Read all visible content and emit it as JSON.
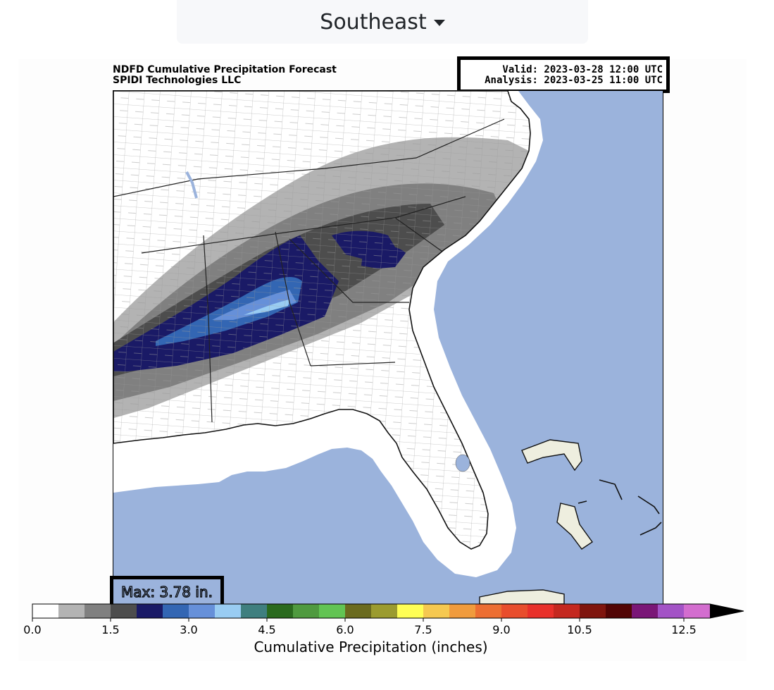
{
  "region_selector": {
    "selected": "Southeast"
  },
  "map": {
    "title_line1": "NDFD Cumulative Precipitation Forecast",
    "title_line2": "SPIDI Technologies LLC",
    "valid": "Valid: 2023-03-28 12:00 UTC",
    "analysis": "Analysis: 2023-03-25 11:00 UTC",
    "max_label": "Max: 3.78 in.",
    "colors": {
      "ocean": "#9bb3dc",
      "land": "#ffffff",
      "bahamas": "#eeeedf"
    }
  },
  "colorbar": {
    "label": "Cumulative Precipitation (inches)",
    "ticks": [
      "0.0",
      "1.5",
      "3.0",
      "4.5",
      "6.0",
      "7.5",
      "9.0",
      "10.5",
      "12.5"
    ],
    "tick_values": [
      0,
      1.5,
      3.0,
      4.5,
      6.0,
      7.5,
      9.0,
      10.5,
      12.5
    ],
    "bin_width": 0.5,
    "extend": "max",
    "colors": [
      "#ffffff",
      "#b3b3b3",
      "#808080",
      "#4d4d4d",
      "#1a1a66",
      "#3366b3",
      "#6690d9",
      "#99ccf2",
      "#3f7f7f",
      "#2a6a1e",
      "#4f9a3f",
      "#62c453",
      "#6b6b1f",
      "#9b9b2f",
      "#ffff55",
      "#f5c850",
      "#f09b3d",
      "#ec6e32",
      "#e84d2c",
      "#e8302a",
      "#c4281f",
      "#7f150e",
      "#520505",
      "#7a1677",
      "#a353c6",
      "#d36dcf"
    ],
    "extend_color": "#000000"
  }
}
